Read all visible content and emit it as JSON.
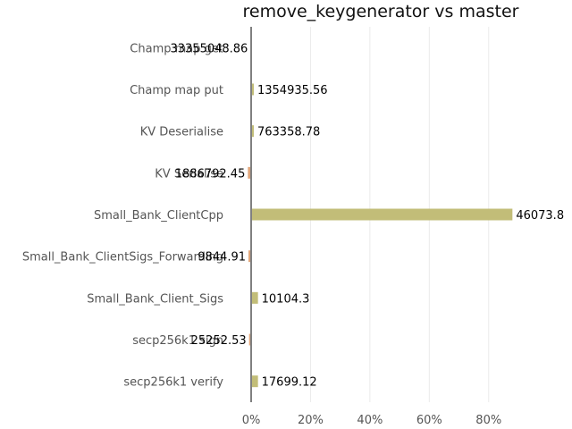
{
  "chart_data": {
    "type": "bar",
    "orientation": "horizontal",
    "title": "remove_keygenerator vs master",
    "xlabel": "",
    "ylabel": "",
    "x_unit": "%",
    "xlim": [
      -1,
      90
    ],
    "x_ticks": [
      0,
      20,
      40,
      60,
      80
    ],
    "x_tick_labels": [
      "0%",
      "20%",
      "40%",
      "60%",
      "80%"
    ],
    "grid": "vertical",
    "legend": "none",
    "categories": [
      "Champ map get",
      "Champ map put",
      "KV Deserialise",
      "KV Serialise",
      "Small_Bank_ClientCpp",
      "Small_Bank_ClientSigs_Forwarding",
      "Small_Bank_Client_Sigs",
      "secp256k1 sign",
      "secp256k1 verify"
    ],
    "values": [
      -0.2,
      0.9,
      0.9,
      -1.1,
      88.0,
      -0.9,
      2.3,
      -0.7,
      2.3
    ],
    "data_labels": [
      "33355048.86",
      "1354935.56",
      "763358.78",
      "1886792.45",
      "46073.8",
      "9844.91",
      "10104.3",
      "25252.53",
      "17699.12"
    ],
    "colors": {
      "positive": "#c2bd78",
      "negative": "#e0a57a",
      "axis": "#808080",
      "grid": "#ebebeb"
    }
  }
}
